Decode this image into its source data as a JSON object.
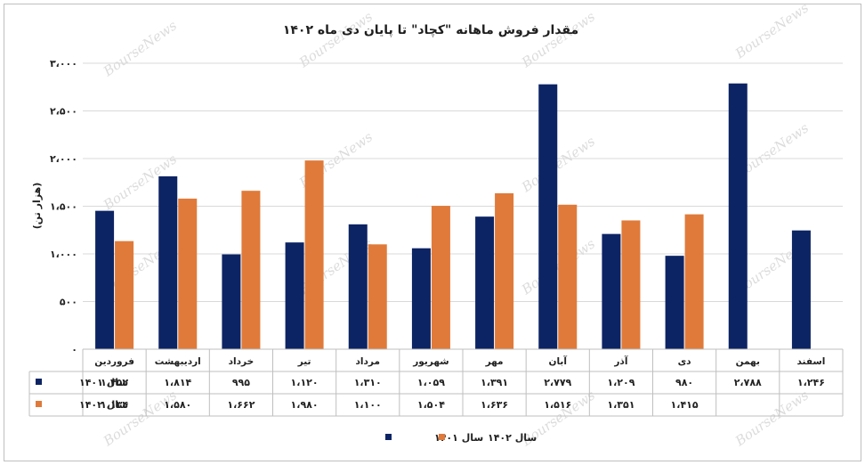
{
  "chart_data": {
    "type": "bar",
    "title": "مقدار فروش ماهانه \"کچاد\" تا پایان دی ماه ۱۴۰۲",
    "ylabel": "(هزار تن)",
    "ylim": [
      0,
      3000
    ],
    "yticks": [
      "۰",
      "۵۰۰",
      "۱،۰۰۰",
      "۱،۵۰۰",
      "۲،۰۰۰",
      "۲،۵۰۰",
      "۳،۰۰۰"
    ],
    "categories": [
      "فروردین",
      "اردیبهشت",
      "خرداد",
      "تیر",
      "مرداد",
      "شهریور",
      "مهر",
      "آبان",
      "آذر",
      "دی",
      "بهمن",
      "اسفند"
    ],
    "series": [
      {
        "name": "سال ۱۴۰۱",
        "color": "#0d2464",
        "values": [
          1452,
          1814,
          995,
          1120,
          1310,
          1059,
          1391,
          2779,
          1209,
          980,
          2788,
          1246
        ],
        "labels": [
          "۱،۴۵۲",
          "۱،۸۱۴",
          "۹۹۵",
          "۱،۱۲۰",
          "۱،۳۱۰",
          "۱،۰۵۹",
          "۱،۳۹۱",
          "۲،۷۷۹",
          "۱،۲۰۹",
          "۹۸۰",
          "۲،۷۸۸",
          "۱،۲۴۶"
        ]
      },
      {
        "name": "سال ۱۴۰۲",
        "color": "#e07a3a",
        "values": [
          1134,
          1580,
          1662,
          1980,
          1100,
          1504,
          1636,
          1516,
          1351,
          1415,
          null,
          null
        ],
        "labels": [
          "۱،۱۳۴",
          "۱،۵۸۰",
          "۱،۶۶۲",
          "۱،۹۸۰",
          "۱،۱۰۰",
          "۱،۵۰۴",
          "۱،۶۳۶",
          "۱،۵۱۶",
          "۱،۳۵۱",
          "۱،۴۱۵",
          "",
          ""
        ]
      }
    ],
    "grid": true,
    "legend_position": "bottom",
    "data_table": true,
    "watermark": "BourseNews"
  }
}
